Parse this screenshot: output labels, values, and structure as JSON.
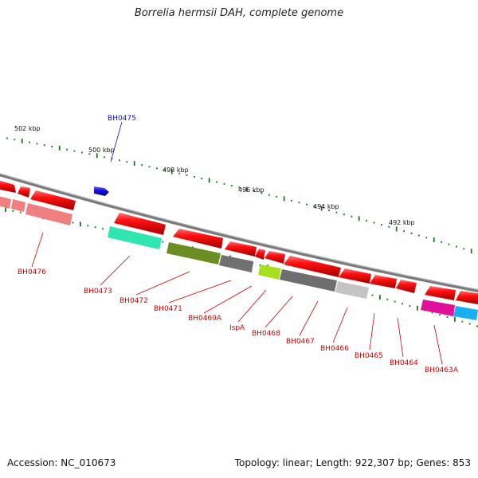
{
  "title": "Borrelia hermsii DAH, complete genome",
  "footer": {
    "accession": "Accession: NC_010673",
    "summary": "Topology: linear; Length: 922,307 bp; Genes: 853"
  },
  "colors": {
    "backbone": "#7a7a7a",
    "tick": "#1a7a1a",
    "forward_label": "#1010c0",
    "reverse_label": "#cc0000",
    "leader_forward": "#1010c0",
    "leader_reverse": "#cc0000"
  },
  "scale_labels": [
    "502 kbp",
    "500 kbp",
    "498 kbp",
    "496 kbp",
    "494 kbp",
    "492 kbp"
  ],
  "forward_genes": [
    {
      "label": "BH0475",
      "color": "#1515e0"
    }
  ],
  "reverse_genes": [
    {
      "label": "BH0476",
      "color": "#e01010"
    },
    {
      "label": "BH0473",
      "color": "#e01010"
    },
    {
      "label": "BH0472",
      "color": "#e01010"
    },
    {
      "label": "BH0471",
      "color": "#e01010"
    },
    {
      "label": "BH0469A",
      "color": "#e01010"
    },
    {
      "label": "IspA",
      "color": "#e01010"
    },
    {
      "label": "BH0468",
      "color": "#e01010"
    },
    {
      "label": "BH0467",
      "color": "#e01010"
    },
    {
      "label": "BH0466",
      "color": "#e01010"
    },
    {
      "label": "BH0465",
      "color": "#e01010"
    },
    {
      "label": "BH0464",
      "color": "#e01010"
    },
    {
      "label": "BH0463A",
      "color": "#e01010"
    }
  ],
  "cds_features": [
    {
      "name": "cds-salmon-1",
      "color": "#f08080"
    },
    {
      "name": "cds-salmon-2",
      "color": "#f08080"
    },
    {
      "name": "cds-teal",
      "color": "#2fe6b0"
    },
    {
      "name": "cds-olive",
      "color": "#6b8e23"
    },
    {
      "name": "cds-dark-gray-1",
      "color": "#707070"
    },
    {
      "name": "cds-lime",
      "color": "#a8e020"
    },
    {
      "name": "cds-dark-gray-2",
      "color": "#6e6e6e"
    },
    {
      "name": "cds-light-gray",
      "color": "#c4c4c4"
    },
    {
      "name": "cds-magenta",
      "color": "#e0109a"
    },
    {
      "name": "cds-sky-blue",
      "color": "#18b0f0"
    }
  ]
}
